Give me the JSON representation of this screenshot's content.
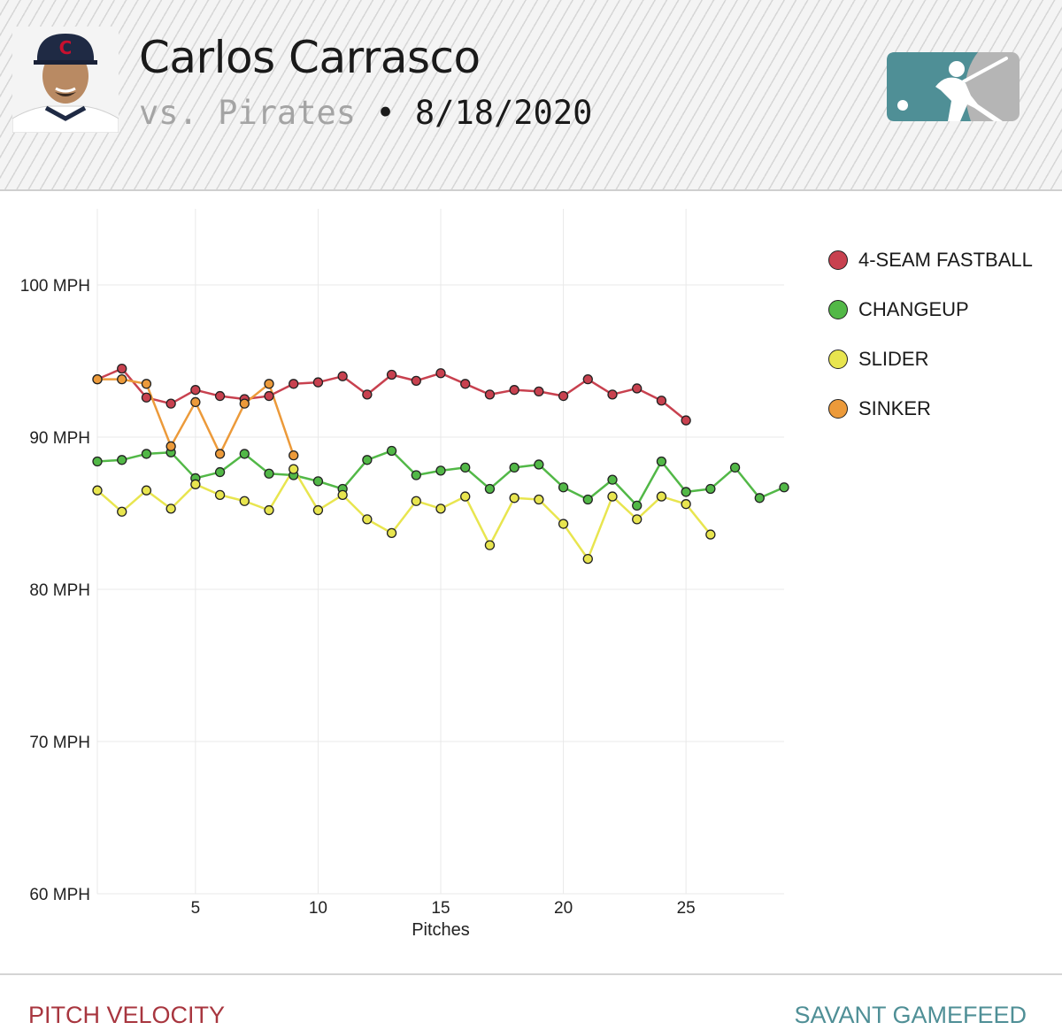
{
  "header": {
    "player_name": "Carlos Carrasco",
    "opponent": "vs. Pirates",
    "separator": "•",
    "date": "8/18/2020"
  },
  "footer": {
    "left_label": "PITCH VELOCITY",
    "right_label": "SAVANT GAMEFEED"
  },
  "colors": {
    "four_seam": "#c8414f",
    "changeup": "#52b847",
    "slider": "#e8e54f",
    "sinker": "#ec9a3a",
    "logo_blue": "#4f8f96",
    "logo_gray": "#b5b5b5"
  },
  "chart_data": {
    "type": "line",
    "xlabel": "Pitches",
    "ylabel": "",
    "xlim": [
      1,
      29
    ],
    "ylim": [
      60,
      105
    ],
    "x_ticks": [
      5,
      10,
      15,
      20,
      25
    ],
    "x_tick_labels": [
      "5",
      "10",
      "15",
      "20",
      "25"
    ],
    "y_ticks": [
      60,
      70,
      80,
      90,
      100
    ],
    "y_tick_labels": [
      "60 MPH",
      "70 MPH",
      "80 MPH",
      "90 MPH",
      "100 MPH"
    ],
    "grid": true,
    "legend_position": "right",
    "series": [
      {
        "name": "4-SEAM FASTBALL",
        "color": "#c8414f",
        "x": [
          1,
          2,
          3,
          4,
          5,
          6,
          7,
          8,
          9,
          10,
          11,
          12,
          13,
          14,
          15,
          16,
          17,
          18,
          19,
          20,
          21,
          22,
          23,
          24,
          25
        ],
        "y": [
          93.8,
          94.5,
          92.6,
          92.2,
          93.1,
          92.7,
          92.5,
          92.7,
          93.5,
          93.6,
          94.0,
          92.8,
          94.1,
          93.7,
          94.2,
          93.5,
          92.8,
          93.1,
          93.0,
          92.7,
          93.8,
          92.8,
          93.2,
          92.4,
          91.1
        ]
      },
      {
        "name": "CHANGEUP",
        "color": "#52b847",
        "x": [
          1,
          2,
          3,
          4,
          5,
          6,
          7,
          8,
          9,
          10,
          11,
          12,
          13,
          14,
          15,
          16,
          17,
          18,
          19,
          20,
          21,
          22,
          23,
          24,
          25,
          26,
          27,
          28,
          29
        ],
        "y": [
          88.4,
          88.5,
          88.9,
          89.0,
          87.3,
          87.7,
          88.9,
          87.6,
          87.5,
          87.1,
          86.6,
          88.5,
          89.1,
          87.5,
          87.8,
          88.0,
          86.6,
          88.0,
          88.2,
          86.7,
          85.9,
          87.2,
          85.5,
          88.4,
          86.4,
          86.6,
          88.0,
          86.0,
          86.7
        ]
      },
      {
        "name": "SLIDER",
        "color": "#e8e54f",
        "x": [
          1,
          2,
          3,
          4,
          5,
          6,
          7,
          8,
          9,
          10,
          11,
          12,
          13,
          14,
          15,
          16,
          17,
          18,
          19,
          20,
          21,
          22,
          23,
          24,
          25,
          26
        ],
        "y": [
          86.5,
          85.1,
          86.5,
          85.3,
          86.9,
          86.2,
          85.8,
          85.2,
          87.9,
          85.2,
          86.2,
          84.6,
          83.7,
          85.8,
          85.3,
          86.1,
          82.9,
          86.0,
          85.9,
          84.3,
          82.0,
          86.1,
          84.6,
          86.1,
          85.6,
          83.6
        ]
      },
      {
        "name": "SINKER",
        "color": "#ec9a3a",
        "x": [
          1,
          2,
          3,
          4,
          5,
          6,
          7,
          8,
          9
        ],
        "y": [
          93.8,
          93.8,
          93.5,
          89.4,
          92.3,
          88.9,
          92.2,
          93.5,
          88.8
        ]
      }
    ]
  }
}
